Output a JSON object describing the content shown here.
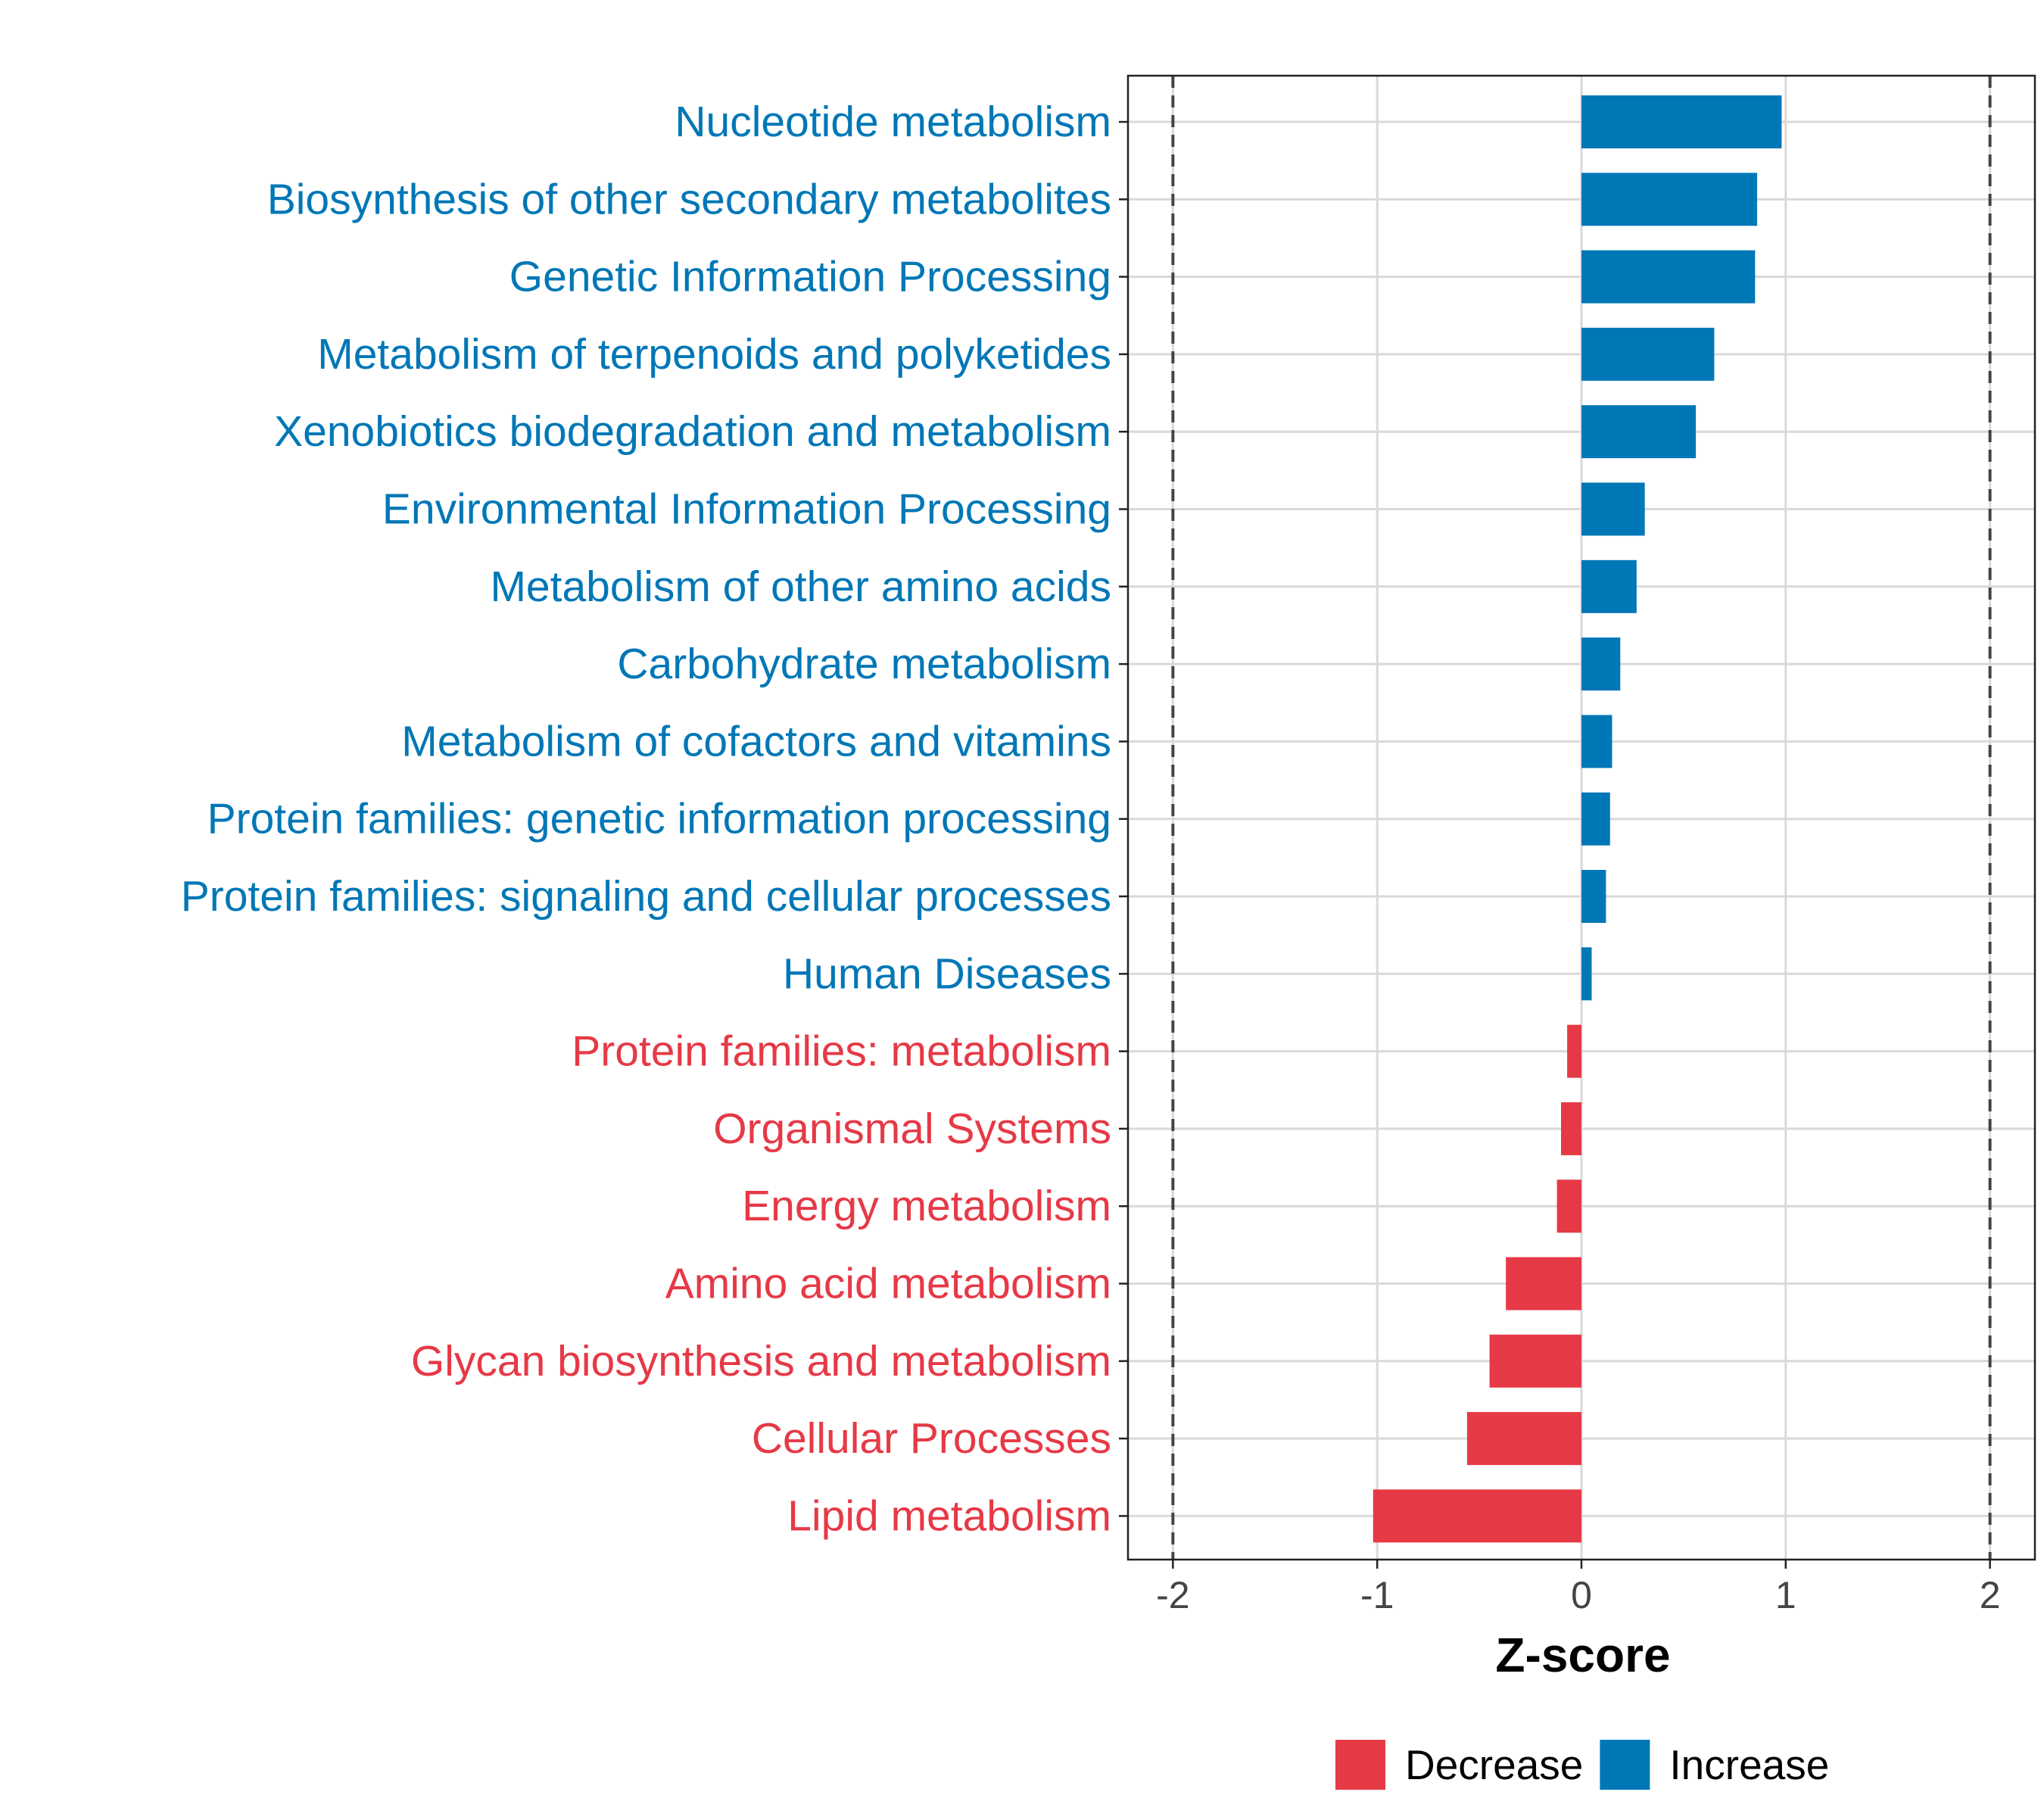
{
  "chart_data": {
    "type": "bar",
    "orientation": "horizontal",
    "title": "",
    "xlabel": "Z-score",
    "ylabel": "",
    "xlim": [
      -2.22,
      2.22
    ],
    "xticks": [
      -2,
      -1,
      0,
      1,
      2
    ],
    "xtick_labels": [
      "-2",
      "-1",
      "0",
      "1",
      "2"
    ],
    "reference_lines": [
      -2,
      2
    ],
    "grid": true,
    "legend_position": "bottom",
    "colors": {
      "Decrease": "#E63946",
      "Increase": "#0077B6"
    },
    "legend": [
      "Decrease",
      "Increase"
    ],
    "categories": [
      "Nucleotide metabolism",
      "Biosynthesis of other secondary metabolites",
      "Genetic Information Processing",
      "Metabolism of terpenoids and polyketides",
      "Xenobiotics biodegradation and metabolism",
      "Environmental Information Processing",
      "Metabolism of other amino acids",
      "Carbohydrate metabolism",
      "Metabolism of cofactors and vitamins",
      "Protein families: genetic information processing",
      "Protein families: signaling and cellular processes",
      "Human Diseases",
      "Protein families: metabolism",
      "Organismal Systems",
      "Energy metabolism",
      "Amino acid metabolism",
      "Glycan biosynthesis and metabolism",
      "Cellular Processes",
      "Lipid metabolism"
    ],
    "values": [
      0.98,
      0.86,
      0.85,
      0.65,
      0.56,
      0.31,
      0.27,
      0.19,
      0.15,
      0.14,
      0.12,
      0.05,
      -0.07,
      -0.1,
      -0.12,
      -0.37,
      -0.45,
      -0.56,
      -1.02
    ]
  }
}
